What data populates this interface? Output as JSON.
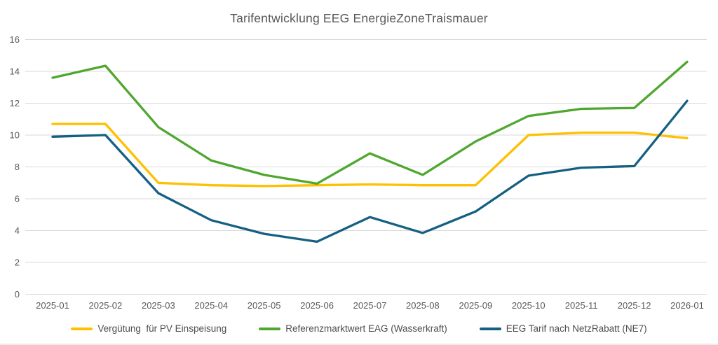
{
  "title": "Tarifentwicklung EEG EnergieZoneTraismauer",
  "colors": {
    "title_text": "#595959",
    "axis_text": "#595959",
    "gridline": "#d9d9d9",
    "series_yellow": "#FFC000",
    "series_green": "#4EA72E",
    "series_blue": "#156082"
  },
  "chart_data": {
    "type": "line",
    "title": "Tarifentwicklung EEG EnergieZoneTraismauer",
    "xlabel": "",
    "ylabel": "",
    "ylim": [
      0,
      16
    ],
    "ytick_step": 2,
    "grid": true,
    "legend_position": "bottom",
    "categories": [
      "2025-01",
      "2025-02",
      "2025-03",
      "2025-04",
      "2025-05",
      "2025-06",
      "2025-07",
      "2025-08",
      "2025-09",
      "2025-10",
      "2025-11",
      "2025-12",
      "2026-01"
    ],
    "series": [
      {
        "name": "Vergütung  für PV Einspeisung",
        "color": "#FFC000",
        "values": [
          10.7,
          10.7,
          7.0,
          6.85,
          6.8,
          6.85,
          6.9,
          6.85,
          6.85,
          10.0,
          10.15,
          10.15,
          9.8
        ]
      },
      {
        "name": "Referenzmarktwert EAG (Wasserkraft)",
        "color": "#4EA72E",
        "values": [
          13.6,
          14.35,
          10.5,
          8.4,
          7.5,
          6.95,
          8.85,
          7.5,
          9.6,
          11.2,
          11.65,
          11.7,
          14.6
        ]
      },
      {
        "name": "EEG Tarif nach NetzRabatt (NE7)",
        "color": "#156082",
        "values": [
          9.9,
          10.0,
          6.35,
          4.65,
          3.8,
          3.3,
          4.85,
          3.85,
          5.2,
          7.45,
          7.95,
          8.05,
          12.15
        ]
      }
    ]
  }
}
